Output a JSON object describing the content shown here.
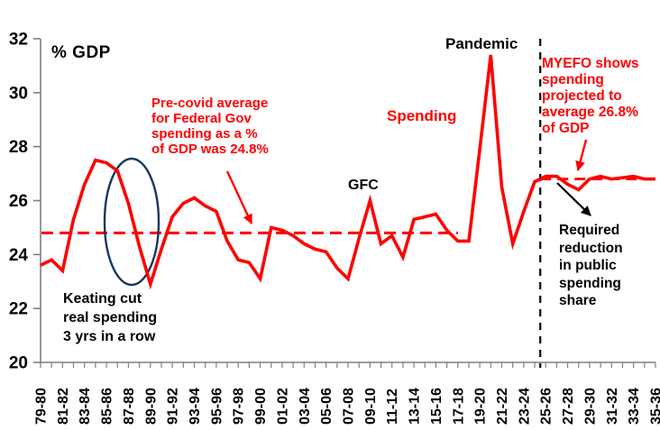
{
  "chart_data": {
    "type": "line",
    "title": "",
    "unit_label": "% GDP",
    "xlabel": "",
    "ylabel": "% GDP",
    "ylim": [
      20,
      32
    ],
    "yticks": [
      20,
      22,
      24,
      26,
      28,
      30,
      32
    ],
    "grid": false,
    "legend_position": "none",
    "x_tick_labels": [
      "79-80",
      "81-82",
      "83-84",
      "85-86",
      "87-88",
      "89-90",
      "91-92",
      "93-94",
      "95-96",
      "97-98",
      "99-00",
      "01-02",
      "03-04",
      "05-06",
      "07-08",
      "09-10",
      "11-12",
      "13-14",
      "15-16",
      "17-18",
      "19-20",
      "21-22",
      "23-24",
      "25-26",
      "27-28",
      "29-30",
      "31-32",
      "33-34",
      "35-36"
    ],
    "x_years_all": [
      "79-80",
      "80-81",
      "81-82",
      "82-83",
      "83-84",
      "84-85",
      "85-86",
      "86-87",
      "87-88",
      "88-89",
      "89-90",
      "90-91",
      "91-92",
      "92-93",
      "93-94",
      "94-95",
      "95-96",
      "96-97",
      "97-98",
      "98-99",
      "99-00",
      "00-01",
      "01-02",
      "02-03",
      "03-04",
      "04-05",
      "05-06",
      "06-07",
      "07-08",
      "08-09",
      "09-10",
      "10-11",
      "11-12",
      "12-13",
      "13-14",
      "14-15",
      "15-16",
      "16-17",
      "17-18",
      "18-19",
      "19-20",
      "20-21",
      "21-22",
      "22-23",
      "23-24",
      "24-25",
      "25-26",
      "26-27",
      "27-28",
      "28-29",
      "29-30",
      "30-31",
      "31-32",
      "32-33",
      "33-34",
      "34-35",
      "35-36"
    ],
    "series": [
      {
        "name": "Spending",
        "color": "#FF0000",
        "values": [
          23.6,
          23.8,
          23.4,
          25.3,
          26.6,
          27.5,
          27.4,
          27.1,
          25.9,
          24.3,
          22.9,
          24.2,
          25.4,
          25.9,
          26.1,
          25.8,
          25.6,
          24.5,
          23.8,
          23.7,
          23.1,
          25.0,
          24.9,
          24.7,
          24.4,
          24.2,
          24.1,
          23.5,
          23.1,
          24.6,
          26.0,
          24.4,
          24.7,
          23.9,
          25.3,
          25.4,
          25.5,
          24.9,
          24.5,
          24.5,
          27.9,
          31.4,
          26.5,
          24.4,
          25.6,
          26.7,
          26.9,
          26.9,
          26.6,
          26.4,
          26.8,
          26.9,
          26.8,
          26.85,
          26.9,
          26.8,
          26.8
        ]
      }
    ],
    "reference_lines": {
      "pre_covid_average": {
        "value": 24.8,
        "color": "#FF0000",
        "style": "dashed",
        "from_year": "79-80",
        "to_year": "17-18"
      },
      "projected_average": {
        "value": 26.8,
        "color": "#FF0000",
        "style": "dashed",
        "from_year": "25-26",
        "to_year": "35-36"
      },
      "projection_divider": {
        "orientation": "vertical",
        "year": "25-26",
        "color": "#000000",
        "style": "dashed"
      }
    },
    "highlight_ellipse": {
      "around_years": "85-86 to 89-90",
      "color": "#17375E"
    }
  },
  "annotations": {
    "y_axis_unit": "% GDP",
    "keating": "Keating cut\nreal spending\n3 yrs in a row",
    "pre_covid": "Pre-covid average\nfor Federal Gov\nspending as a %\nof GDP was 24.8%",
    "gfc": "GFC",
    "spending": "Spending",
    "pandemic": "Pandemic",
    "myefo": "MYEFO shows\nspending\nprojected to\naverage 26.8%\nof GDP",
    "required": "Required\nreduction\nin public\nspending\nshare"
  },
  "colors": {
    "line": "#FF0000",
    "annotation_red": "#FF0000",
    "annotation_black": "#000000",
    "ellipse": "#17375E",
    "axis": "#7F7F7F",
    "background": "#FFFFFF"
  }
}
